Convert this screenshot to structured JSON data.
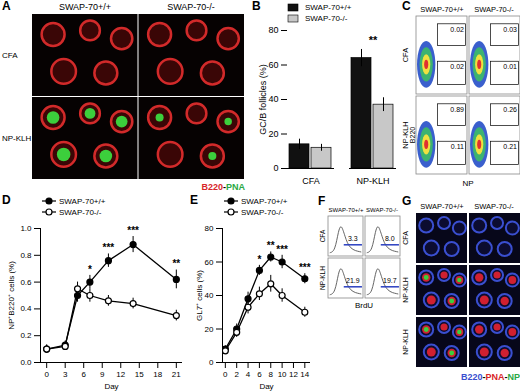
{
  "chart_data": [
    {
      "type": "bar",
      "title": "B",
      "categories": [
        "CFA",
        "NP-KLH"
      ],
      "series": [
        {
          "name": "SWAP-70+/+",
          "color": "#111111",
          "values": [
            14,
            64
          ],
          "errors": [
            3,
            5
          ]
        },
        {
          "name": "SWAP-70-/-",
          "color": "#c8c8c8",
          "values": [
            12,
            37
          ],
          "errors": [
            2,
            4
          ]
        }
      ],
      "y_label": "GC/B follicles (%)",
      "ylim": [
        0,
        80
      ],
      "yticks": [
        0,
        20,
        40,
        60,
        80
      ],
      "annotations": [
        {
          "category": "NP-KLH",
          "text": "**"
        }
      ],
      "legend": "top-left"
    },
    {
      "type": "line",
      "title": "D",
      "x": [
        0,
        3,
        5,
        7,
        10,
        14,
        21
      ],
      "series": [
        {
          "name": "SWAP-70+/+",
          "color": "#000000",
          "marker": "filled_circle",
          "values": [
            0.1,
            0.13,
            0.5,
            0.6,
            0.76,
            0.88,
            0.62
          ],
          "errors": [
            0.03,
            0.03,
            0.05,
            0.05,
            0.05,
            0.06,
            0.07
          ]
        },
        {
          "name": "SWAP-70-/-",
          "color": "#000000",
          "marker": "open_circle",
          "values": [
            0.1,
            0.12,
            0.55,
            0.5,
            0.46,
            0.44,
            0.35
          ],
          "errors": [
            0.03,
            0.03,
            0.05,
            0.05,
            0.04,
            0.04,
            0.04
          ]
        }
      ],
      "x_label": "Day",
      "y_label": "NP⁺B220⁺ cells (%)",
      "xlim": [
        -1,
        22
      ],
      "xticks": [
        0,
        3,
        6,
        9,
        12,
        15,
        18,
        21
      ],
      "ylim": [
        0,
        1
      ],
      "yticks": [
        {
          "value": 0,
          "label": "0.0"
        },
        0.2,
        0.4,
        0.6,
        0.8,
        {
          "value": 1,
          "label": "1.0"
        }
      ],
      "annotations": [
        {
          "x": 7,
          "text": "*"
        },
        {
          "x": 10,
          "text": "***"
        },
        {
          "x": 14,
          "text": "***"
        },
        {
          "x": 21,
          "text": "**"
        }
      ],
      "legend": "top-left"
    },
    {
      "type": "line",
      "title": "E",
      "x": [
        0,
        2,
        4,
        6,
        8,
        10,
        14
      ],
      "series": [
        {
          "name": "SWAP-70+/+",
          "color": "#000000",
          "marker": "filled_circle",
          "values": [
            8,
            20,
            38,
            55,
            63,
            60,
            50
          ],
          "errors": [
            2,
            3,
            4,
            3,
            3,
            4,
            3
          ]
        },
        {
          "name": "SWAP-70-/-",
          "color": "#000000",
          "marker": "open_circle",
          "values": [
            7,
            18,
            33,
            41,
            47,
            40,
            30
          ],
          "errors": [
            2,
            3,
            4,
            4,
            5,
            4,
            3
          ]
        }
      ],
      "x_label": "Day",
      "y_label": "GL7⁺ cells (%)",
      "xlim": [
        -0.5,
        15
      ],
      "xticks": [
        0,
        2,
        4,
        6,
        8,
        10,
        12,
        14
      ],
      "ylim": [
        0,
        80
      ],
      "yticks": [
        0,
        20,
        40,
        60,
        80
      ],
      "annotations": [
        {
          "x": 6,
          "text": "*"
        },
        {
          "x": 8,
          "text": "**"
        },
        {
          "x": 10,
          "text": "***"
        },
        {
          "x": 14,
          "text": "***"
        }
      ],
      "legend": "top-left"
    }
  ],
  "image_panels": [
    {
      "title": "A",
      "columns": [
        "SWAP-70+/+",
        "SWAP-70-/-"
      ],
      "rows": [
        "CFA",
        "NP-KLH"
      ],
      "caption": [
        {
          "text": "B220",
          "color": "#d8262a"
        },
        {
          "text": "-",
          "color": "#000000"
        },
        {
          "text": "PNA",
          "color": "#2aa845"
        }
      ]
    },
    {
      "title": "C",
      "columns": [
        "SWAP-70+/+",
        "SWAP-70-/-"
      ],
      "rows": [
        "CFA",
        "NP-KLH"
      ],
      "gates": [
        [
          [
            0.02,
            0.02
          ],
          [
            0.03,
            0.01
          ]
        ],
        [
          [
            0.89,
            0.11
          ],
          [
            0.26,
            0.21
          ]
        ]
      ],
      "x_label": "NP",
      "y_label": "B220"
    },
    {
      "title": "F",
      "columns": [
        "SWAP-70+/+",
        "SWAP-70-/-"
      ],
      "rows": [
        "CFA",
        "NP-KLH"
      ],
      "values": [
        [
          3.3,
          {
            "value": 8,
            "label": "8.0"
          }
        ],
        [
          21.9,
          19.7
        ]
      ],
      "x_label": "BrdU"
    },
    {
      "title": "G",
      "columns": [
        "SWAP-70+/+",
        "SWAP-70-/-"
      ],
      "rows": [
        "CFA",
        "NP-KLH",
        "NP-KLH"
      ],
      "caption": [
        {
          "text": "B220",
          "color": "#3a4fd0"
        },
        {
          "text": "-",
          "color": "#000000"
        },
        {
          "text": "PNA",
          "color": "#d8262a"
        },
        {
          "text": "-",
          "color": "#000000"
        },
        {
          "text": "NP",
          "color": "#2aa845"
        }
      ]
    }
  ]
}
